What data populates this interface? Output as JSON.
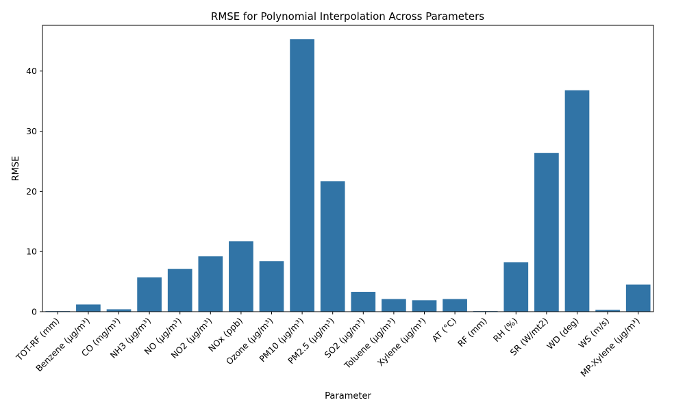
{
  "chart_data": {
    "type": "bar",
    "title": "RMSE for Polynomial Interpolation Across Parameters",
    "xlabel": "Parameter",
    "ylabel": "RMSE",
    "ylim": [
      0,
      47.6
    ],
    "yticks": [
      0,
      10,
      20,
      30,
      40
    ],
    "grid": false,
    "bar_color": "#3174a6",
    "categories": [
      "TOT-RF (mm)",
      "Benzene (µg/m³)",
      "CO (mg/m³)",
      "NH3 (µg/m³)",
      "NO (µg/m³)",
      "NO2 (µg/m³)",
      "NOx (ppb)",
      "Ozone (µg/m³)",
      "PM10 (µg/m³)",
      "PM2.5 (µg/m³)",
      "SO2 (µg/m³)",
      "Toluene (µg/m³)",
      "Xylene (µg/m³)",
      "AT (°C)",
      "RF (mm)",
      "RH (%)",
      "SR (W/mt2)",
      "WD (deg)",
      "WS (m/s)",
      "MP-Xylene (µg/m³)"
    ],
    "values": [
      0.1,
      1.2,
      0.4,
      5.7,
      7.1,
      9.2,
      11.7,
      8.4,
      45.3,
      21.7,
      3.3,
      2.1,
      1.9,
      2.1,
      0.1,
      8.2,
      26.4,
      36.8,
      0.3,
      4.5
    ]
  }
}
